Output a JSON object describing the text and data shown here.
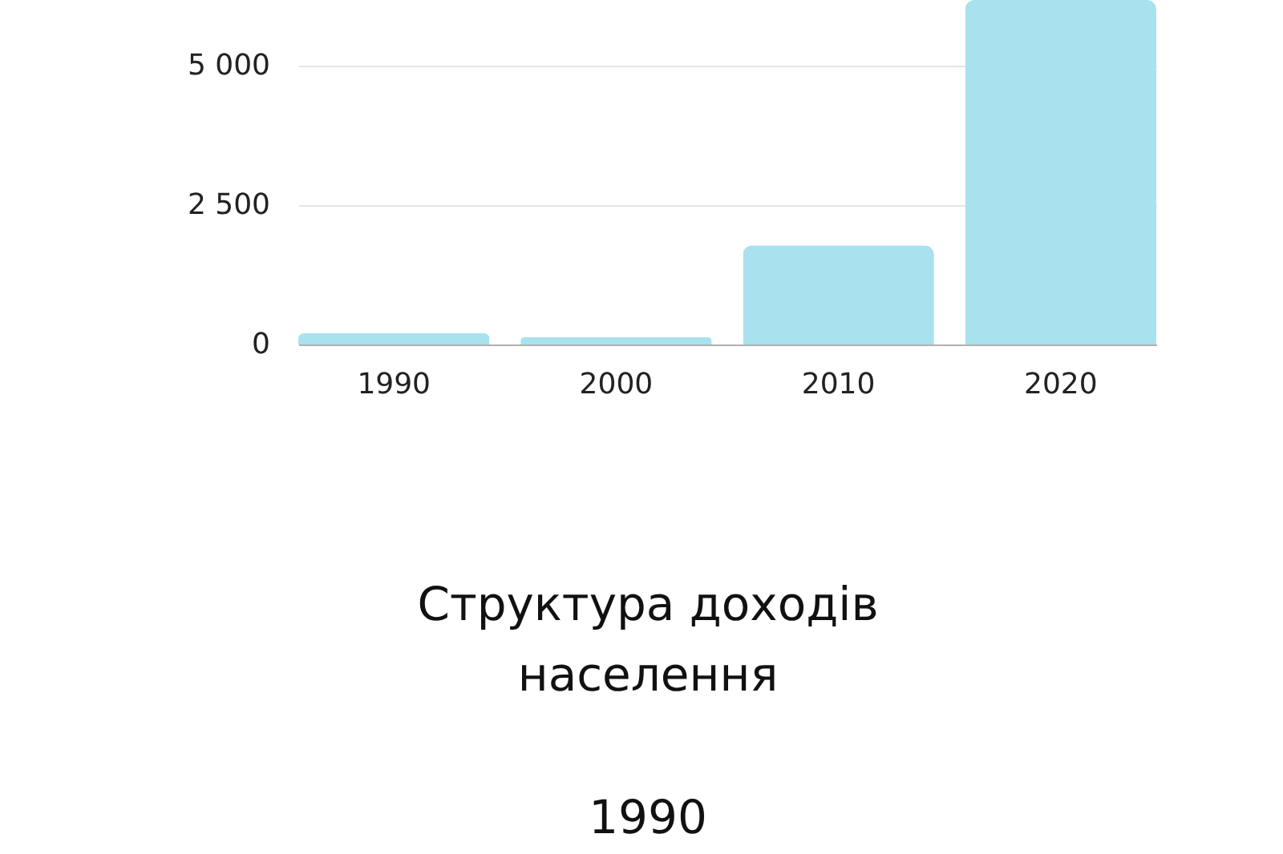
{
  "chart_data": {
    "type": "bar",
    "categories": [
      "1990",
      "2000",
      "2010",
      "2020"
    ],
    "values": [
      200,
      130,
      1780,
      6180
    ],
    "color": "#a9e1ef",
    "ylim": [
      0,
      6180
    ],
    "yticks": [
      0,
      {
        "value": 2500,
        "label": "2 500"
      },
      {
        "value": 5000,
        "label": "5 000"
      }
    ],
    "grid": "y",
    "annotations": [
      "Структура доходів населення",
      "1990"
    ]
  }
}
